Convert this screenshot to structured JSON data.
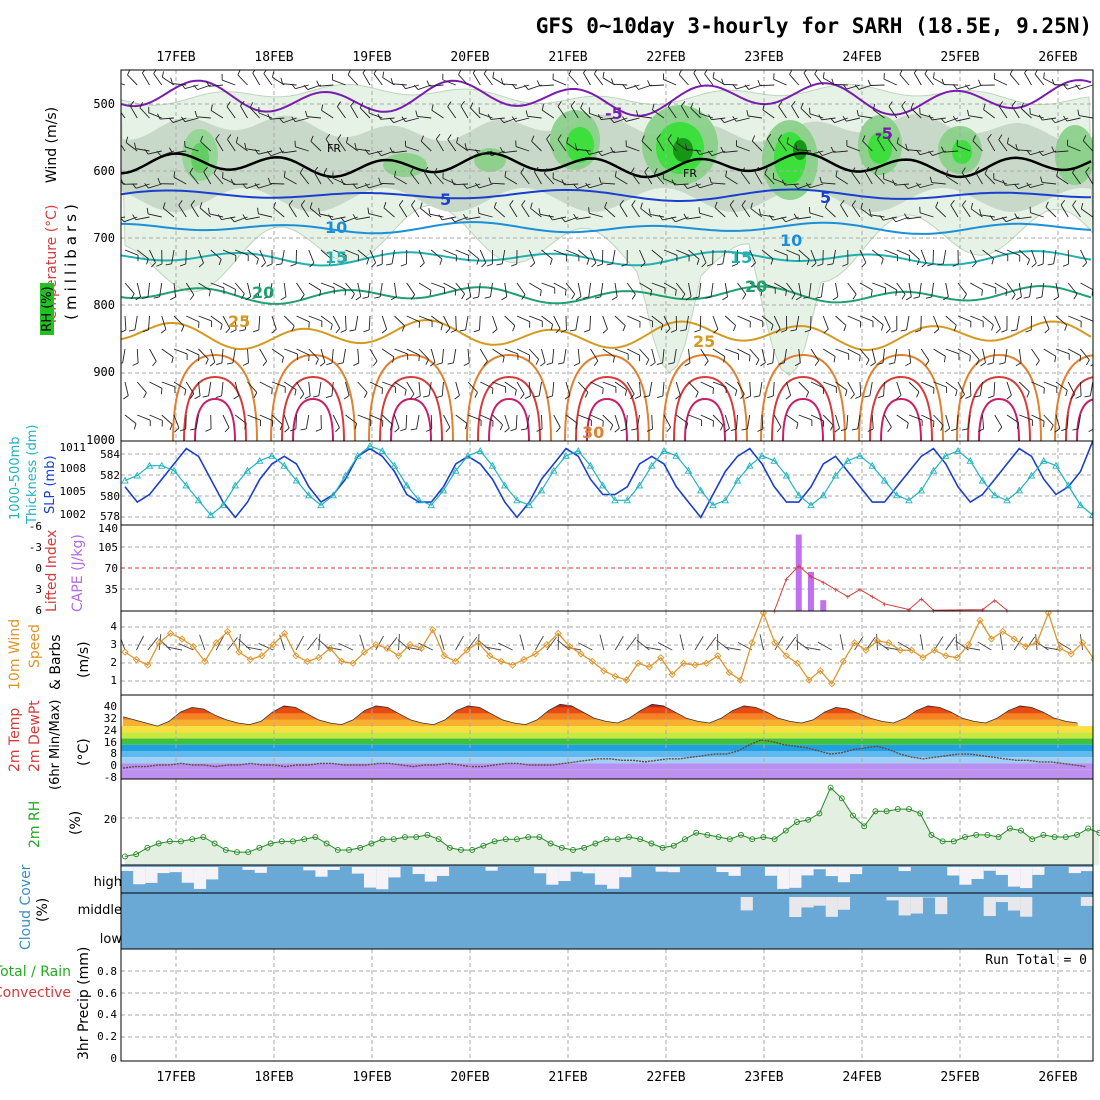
{
  "title": "GFS 0~10day 3-hourly for SARH (18.5E, 9.25N)",
  "x_labels": [
    "17FEB",
    "18FEB",
    "19FEB",
    "20FEB",
    "21FEB",
    "22FEB",
    "23FEB",
    "24FEB",
    "25FEB",
    "26FEB"
  ],
  "panels": {
    "upper": {
      "label_wind": "Wind (m/s)",
      "label_temp": "Temperature (°C)",
      "label_rh": "RH (%)",
      "label_unit": "(millibars)",
      "yticks": [
        "500",
        "600",
        "700",
        "800",
        "900",
        "1000"
      ],
      "freezing_label": "FR",
      "temp_labels": [
        "-5",
        "5",
        "10",
        "15",
        "20",
        "25",
        "30"
      ]
    },
    "thick": {
      "label_a": "1000-500mb",
      "label_b": "Thickness (dm)",
      "label_slp": "SLP (mb)",
      "yticks_left": [
        "584",
        "582",
        "580",
        "578"
      ],
      "yticks_right": [
        "1011",
        "1008",
        "1005",
        "1002"
      ]
    },
    "li": {
      "label_li": "Lifted Index",
      "label_cape": "CAPE (J/kg)",
      "yticks_left": [
        "-6",
        "-3",
        "0",
        "3",
        "6"
      ],
      "yticks_right": [
        "140",
        "105",
        "70",
        "35"
      ]
    },
    "wind": {
      "label_a": "10m Wind",
      "label_b": "Speed",
      "label_c": "& Barbs",
      "label_unit": "(m/s)",
      "yticks": [
        "4",
        "3",
        "2",
        "1"
      ]
    },
    "temp": {
      "label_a": "2m Temp",
      "label_b": "2m DewPt",
      "label_c": "(6hr Min/Max)",
      "label_unit": "(°C)",
      "yticks": [
        "40",
        "32",
        "24",
        "16",
        "8",
        "0",
        "-8"
      ]
    },
    "rh": {
      "label": "2m RH",
      "label_unit": "(%)",
      "yticks": [
        "20"
      ]
    },
    "cloud": {
      "label": "Cloud Cover",
      "label_unit": "(%)",
      "levels": [
        "high",
        "middle",
        "low"
      ]
    },
    "precip": {
      "label_a": "Total / Rain",
      "label_b": "Convective",
      "label_c": "3hr Precip (mm)",
      "run_total": "Run Total = 0",
      "yticks": [
        "0.8",
        "0.6",
        "0.4",
        "0.2",
        "0"
      ]
    }
  },
  "chart_data": [
    {
      "type": "line",
      "name": "1000-500mb Thickness (dm) / SLP (mb)",
      "x_unit": "3-hourly steps from 16FEB12Z",
      "series": [
        {
          "name": "SLP (mb)",
          "color": "#1a3fcc",
          "values": [
            1006,
            1004,
            1005,
            1007,
            1009,
            1011,
            1010,
            1007,
            1004,
            1002,
            1004,
            1007,
            1009,
            1010,
            1009,
            1006,
            1004,
            1005,
            1007,
            1010,
            1011,
            1010,
            1008,
            1005,
            1004,
            1004,
            1006,
            1009,
            1010,
            1009,
            1007,
            1004,
            1002,
            1004,
            1007,
            1009,
            1011,
            1010,
            1007,
            1005,
            1005,
            1006,
            1009,
            1010,
            1009,
            1006,
            1004,
            1002,
            1005,
            1008,
            1010,
            1011,
            1009,
            1006,
            1004,
            1004,
            1006,
            1009,
            1010,
            1008,
            1006,
            1004,
            1004,
            1006,
            1008,
            1010,
            1011,
            1009,
            1006,
            1004,
            1005,
            1007,
            1009,
            1011,
            1010,
            1007,
            1005,
            1006,
            1008,
            1012
          ]
        },
        {
          "name": "1000-500mb Thickness (dm)",
          "color": "#22b3c0",
          "values": [
            581.5,
            582,
            583,
            583,
            582.5,
            581,
            579.5,
            578,
            579,
            581,
            582.5,
            583.5,
            584,
            583,
            581.5,
            580,
            579,
            580,
            582,
            584,
            585,
            584.5,
            583,
            581,
            579.5,
            579,
            580.5,
            582.5,
            584,
            584.5,
            583,
            581,
            579.5,
            579,
            580.5,
            582.5,
            584,
            584.5,
            583,
            581,
            579.5,
            579.5,
            581,
            583,
            584.5,
            584,
            582.5,
            580.5,
            579,
            579.5,
            581.5,
            583,
            584,
            583.5,
            582,
            580,
            579,
            580,
            582,
            583.5,
            584,
            583,
            581.5,
            580,
            579.5,
            580.5,
            582.5,
            584,
            584.5,
            583.5,
            581.5,
            580,
            579.5,
            580.5,
            582,
            583.5,
            583,
            581,
            579,
            578
          ]
        }
      ],
      "ylim_left": [
        577,
        585.5
      ],
      "ylim_right": [
        1001,
        1012
      ]
    },
    {
      "type": "bar",
      "name": "CAPE (J/kg) / Lifted Index",
      "bars": [
        {
          "step": 55,
          "value": 127
        },
        {
          "step": 56,
          "value": 65
        },
        {
          "step": 57,
          "value": 18
        }
      ],
      "li_points": [
        [
          53,
          6
        ],
        [
          54,
          1.5
        ],
        [
          55,
          -0.3
        ],
        [
          56,
          1.2
        ],
        [
          57,
          2
        ],
        [
          58,
          3
        ],
        [
          59,
          4
        ],
        [
          60,
          3
        ],
        [
          61,
          4
        ],
        [
          62,
          5
        ],
        [
          64,
          5.8
        ],
        [
          65,
          4.3
        ],
        [
          66,
          5.9
        ],
        [
          70,
          5.8
        ],
        [
          71,
          4.5
        ],
        [
          72,
          5.9
        ]
      ],
      "ylim_left": [
        -6,
        6
      ],
      "ylim_right": [
        0,
        140
      ]
    },
    {
      "type": "line",
      "name": "10m Wind Speed (m/s)",
      "color": "#e0952a",
      "values": [
        2.5,
        2.1,
        1.8,
        3.0,
        3.5,
        3.2,
        2.8,
        2.0,
        3.0,
        3.6,
        2.5,
        2.1,
        2.3,
        2.9,
        3.5,
        2.3,
        2.0,
        2.2,
        2.7,
        2.0,
        1.9,
        2.5,
        2.9,
        2.7,
        2.3,
        2.9,
        2.7,
        3.7,
        2.3,
        2.0,
        2.6,
        3.0,
        2.3,
        2.0,
        1.8,
        2.1,
        2.4,
        2.9,
        3.5,
        2.8,
        2.4,
        2.0,
        1.5,
        1.2,
        1.0,
        1.9,
        1.7,
        2.2,
        1.3,
        1.9,
        1.8,
        1.9,
        2.3,
        1.4,
        1.0,
        3.0,
        4.6,
        3.0,
        2.3,
        1.9,
        1.0,
        1.5,
        0.8,
        2.0,
        3.0,
        2.6,
        3.1,
        3.0,
        2.6,
        2.6,
        2.2,
        2.6,
        2.3,
        2.2,
        2.9,
        4.2,
        3.2,
        3.6,
        3.2,
        2.8,
        3.0,
        4.6,
        2.7,
        2.4,
        3.0,
        2.1
      ],
      "ylim": [
        0.2,
        4.7
      ]
    },
    {
      "type": "area",
      "name": "2m Temp / 2m DewPt (°C)",
      "temp_values": [
        30,
        28,
        26,
        24,
        27,
        33,
        36,
        35,
        31,
        28,
        26,
        25,
        27,
        33,
        37,
        36,
        32,
        28,
        26,
        25,
        28,
        34,
        37,
        36,
        32,
        28,
        26,
        25,
        28,
        34,
        37,
        36,
        32,
        28,
        26,
        25,
        28,
        34,
        38,
        37,
        33,
        29,
        27,
        26,
        29,
        34,
        38,
        37,
        33,
        29,
        27,
        26,
        29,
        34,
        37,
        36,
        33,
        29,
        27,
        26,
        28,
        33,
        36,
        35,
        32,
        29,
        27,
        26,
        29,
        34,
        37,
        36,
        33,
        29,
        27,
        26,
        29,
        34,
        37,
        36,
        33,
        29,
        27,
        26
      ],
      "dewpt_values": [
        -3,
        -2,
        -2,
        -1,
        -1,
        0,
        -1,
        -1,
        -2,
        -1,
        -1,
        0,
        -1,
        -1,
        -2,
        -1,
        -1,
        0,
        0,
        -1,
        -1,
        -1,
        0,
        0,
        -1,
        -2,
        -1,
        -1,
        0,
        -1,
        -2,
        -2,
        -1,
        0,
        0,
        -1,
        -1,
        -1,
        0,
        1,
        2,
        3,
        3,
        2,
        2,
        1,
        2,
        3,
        3,
        4,
        5,
        6,
        6,
        8,
        12,
        15,
        14,
        12,
        11,
        10,
        8,
        6,
        7,
        9,
        10,
        11,
        9,
        6,
        4,
        3,
        4,
        5,
        6,
        6,
        5,
        4,
        3,
        2,
        2,
        1,
        1,
        0,
        -1,
        -2
      ],
      "ylim": [
        -10,
        44
      ]
    },
    {
      "type": "area",
      "name": "2m RH (%)",
      "color": "#228822",
      "values": [
        4,
        5,
        8,
        10,
        11,
        11,
        12,
        13,
        10,
        7,
        6,
        6,
        8,
        10,
        11,
        11,
        12,
        13,
        10,
        7,
        7,
        8,
        10,
        12,
        12,
        13,
        13,
        14,
        12,
        8,
        7,
        7,
        9,
        11,
        12,
        12,
        13,
        13,
        10,
        8,
        7,
        8,
        10,
        12,
        12,
        13,
        12,
        10,
        8,
        9,
        12,
        15,
        14,
        13,
        12,
        14,
        12,
        13,
        12,
        16,
        20,
        21,
        24,
        36,
        31,
        23,
        18,
        25,
        25,
        26,
        26,
        24,
        14,
        11,
        11,
        13,
        14,
        14,
        13,
        17,
        16,
        12,
        14,
        13,
        13,
        14,
        17,
        15
      ],
      "ylim": [
        0,
        40
      ]
    }
  ]
}
